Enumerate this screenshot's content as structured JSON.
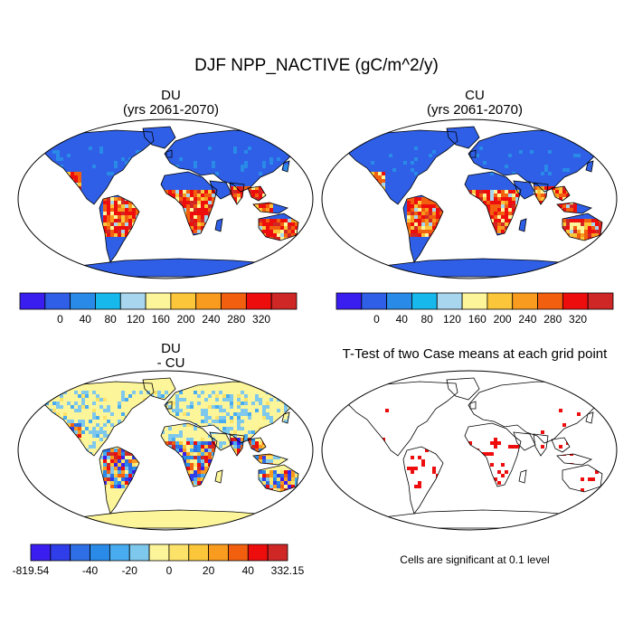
{
  "figure": {
    "title": "DJF NPP_NACTIVE (gC/m^2/y)"
  },
  "panels": [
    {
      "id": "du",
      "title_line1": "DU",
      "title_line2": "(yrs 2061-2070)"
    },
    {
      "id": "cu",
      "title_line1": "CU",
      "title_line2": "(yrs 2061-2070)"
    },
    {
      "id": "diff",
      "title_line1": "DU",
      "title_line2": "- CU"
    },
    {
      "id": "ttest",
      "title_line1": "T-Test of two Case means at each grid point",
      "title_line2": ""
    }
  ],
  "colorbar_abs": {
    "colors": [
      "#3a1ef0",
      "#2f5fe6",
      "#2a8ae8",
      "#17b8ec",
      "#a8d6ee",
      "#fdf59a",
      "#fcc63a",
      "#f99b1e",
      "#f2600f",
      "#ee0d0d",
      "#cf2626"
    ],
    "tick_labels": [
      "0",
      "40",
      "80",
      "120",
      "160",
      "200",
      "240",
      "280",
      "320"
    ]
  },
  "colorbar_diff": {
    "colors": [
      "#3a1ef0",
      "#2f3ee8",
      "#2f6fe6",
      "#2a8ae8",
      "#4aacf0",
      "#7ec8ee",
      "#fdf59a",
      "#fde26a",
      "#fcc63a",
      "#f99b1e",
      "#f2600f",
      "#ee0d0d",
      "#cf2626"
    ],
    "tick_labels": [
      "-819.54",
      "-40",
      "-20",
      "0",
      "20",
      "40",
      "332.15"
    ]
  },
  "ttest_note": "Cells are significant at 0.1 level",
  "legend_colors": {
    "ocean": "#ffffff",
    "outline": "#000000",
    "significant": "#ee0d0d"
  }
}
